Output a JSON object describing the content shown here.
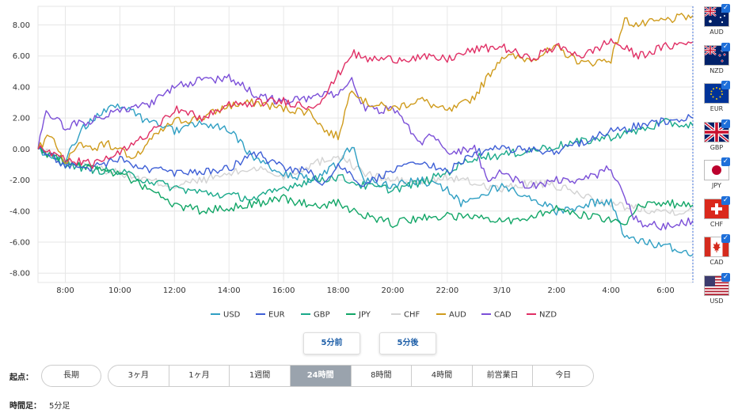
{
  "chart_data": {
    "type": "line",
    "title": "",
    "ylim": [
      -8,
      9
    ],
    "y_ticks": [
      "8.00",
      "6.00",
      "4.00",
      "2.00",
      "0.00",
      "-2.00",
      "-4.00",
      "-6.00",
      "-8.00"
    ],
    "y_tick_values": [
      8,
      6,
      4,
      2,
      0,
      -2,
      -4,
      -6,
      -8
    ],
    "x_ticks": [
      "8:00",
      "10:00",
      "12:00",
      "14:00",
      "16:00",
      "18:00",
      "20:00",
      "22:00",
      "3/10",
      "2:00",
      "4:00",
      "6:00"
    ],
    "x_tick_hours": [
      8,
      10,
      12,
      14,
      16,
      18,
      20,
      22,
      24,
      26,
      28,
      30
    ],
    "x_range_hours": [
      7,
      31
    ],
    "grid": true,
    "legend_position": "bottom",
    "series": [
      {
        "name": "USD",
        "color": "#2f9fc3",
        "x": [
          7,
          7.5,
          8,
          8.5,
          9,
          9.5,
          10,
          11,
          12,
          12.5,
          13,
          14,
          15,
          16,
          17,
          18,
          18.5,
          19,
          20,
          21,
          22,
          22.5,
          23,
          24,
          25,
          26,
          27,
          28,
          28.5,
          29,
          30,
          31
        ],
        "values": [
          0,
          -0.4,
          -0.8,
          1.0,
          2.0,
          2.5,
          2.8,
          1.8,
          1.2,
          1.5,
          1.6,
          1.2,
          -0.8,
          -1.5,
          -2.0,
          -1.0,
          0.2,
          -2.0,
          -2.4,
          -2.0,
          -2.6,
          -3.5,
          -3.0,
          -2.4,
          -3.0,
          -4.0,
          -3.6,
          -3.3,
          -5.6,
          -6.0,
          -6.2,
          -6.8
        ]
      },
      {
        "name": "EUR",
        "color": "#3e5fd6",
        "x": [
          7,
          8,
          9,
          10,
          11,
          12,
          13,
          14,
          15,
          16,
          17,
          17.5,
          18,
          19,
          20,
          21,
          22,
          23,
          24,
          25,
          26,
          27,
          28,
          29,
          30,
          31
        ],
        "values": [
          0,
          -1.0,
          -1.2,
          -0.7,
          -1.3,
          -1.5,
          -1.4,
          -1.2,
          -0.3,
          -1.2,
          -1.5,
          -2.4,
          -1.2,
          -2.3,
          -1.3,
          -0.8,
          -1.5,
          -0.2,
          0.0,
          0.0,
          -0.2,
          0.5,
          1.2,
          1.5,
          1.8,
          2.0
        ]
      },
      {
        "name": "GBP",
        "color": "#19a98a",
        "x": [
          7,
          8,
          9,
          10,
          11,
          12,
          13,
          14,
          15,
          16,
          17,
          18,
          19,
          20,
          21,
          22,
          23,
          24,
          25,
          26,
          27,
          28,
          29,
          30,
          31
        ],
        "values": [
          0,
          -1.0,
          -1.3,
          -1.5,
          -2.0,
          -2.5,
          -2.8,
          -3.0,
          -3.2,
          -2.5,
          -2.0,
          -1.8,
          -2.4,
          -2.6,
          -2.2,
          -1.5,
          -0.5,
          -0.4,
          -0.1,
          0.2,
          0.5,
          0.8,
          1.2,
          1.7,
          1.5
        ]
      },
      {
        "name": "JPY",
        "color": "#12a667",
        "x": [
          7,
          8,
          9,
          10,
          11,
          12,
          13,
          14,
          15,
          16,
          17,
          18,
          19,
          20,
          21,
          22,
          23,
          24,
          25,
          26,
          27,
          28,
          28.5,
          29,
          30,
          31
        ],
        "values": [
          0,
          -0.8,
          -1.2,
          -1.6,
          -2.5,
          -3.6,
          -4.0,
          -3.8,
          -3.5,
          -3.2,
          -3.6,
          -3.5,
          -4.3,
          -4.8,
          -4.5,
          -4.3,
          -4.5,
          -4.6,
          -4.5,
          -3.7,
          -4.3,
          -4.5,
          -5.1,
          -3.7,
          -3.5,
          -3.6
        ]
      },
      {
        "name": "CHF",
        "color": "#d3d3d3",
        "x": [
          7,
          8,
          9,
          10,
          11,
          12,
          13,
          14,
          15,
          16,
          17,
          18,
          19,
          20,
          21,
          22,
          23,
          24,
          25,
          26,
          27,
          28,
          29,
          30,
          31
        ],
        "values": [
          0,
          -0.8,
          -1.2,
          -1.5,
          -2.0,
          -2.4,
          -2.0,
          -1.6,
          -1.2,
          -1.8,
          -1.0,
          -0.4,
          -1.6,
          -2.0,
          -2.2,
          -1.8,
          -2.2,
          -2.6,
          -2.2,
          -2.4,
          -3.0,
          -3.6,
          -3.8,
          -4.0,
          -4.0
        ]
      },
      {
        "name": "AUD",
        "color": "#cf9b1c",
        "x": [
          7,
          7.5,
          8,
          8.5,
          9,
          9.5,
          10,
          10.5,
          11,
          12,
          13,
          14,
          15,
          16,
          17,
          17.5,
          18,
          18.5,
          19,
          20,
          21,
          22,
          22.5,
          23,
          24,
          25,
          26,
          27,
          28,
          28.5,
          29,
          30,
          31
        ],
        "values": [
          0,
          1.0,
          -0.8,
          0.2,
          0.0,
          0.4,
          0.0,
          -0.8,
          0.4,
          1.8,
          2.0,
          2.8,
          3.0,
          2.6,
          2.4,
          1.2,
          0.8,
          4.0,
          3.0,
          2.6,
          3.2,
          2.4,
          2.8,
          3.4,
          6.0,
          5.8,
          6.5,
          5.5,
          5.8,
          8.3,
          8.0,
          8.3,
          8.6
        ]
      },
      {
        "name": "CAD",
        "color": "#7b4fd8",
        "x": [
          7,
          7.3,
          7.7,
          8,
          9,
          10,
          11,
          12,
          13,
          14,
          15,
          16,
          17,
          18,
          18.5,
          19,
          20,
          20.5,
          21,
          21.5,
          22,
          23,
          23.5,
          24,
          25,
          26,
          27,
          28,
          28.5,
          29,
          30,
          31
        ],
        "values": [
          0,
          2.6,
          1.8,
          1.4,
          1.9,
          2.6,
          2.8,
          4.0,
          4.4,
          4.6,
          3.5,
          3.0,
          3.3,
          3.6,
          4.4,
          2.5,
          2.6,
          1.5,
          0.4,
          1.0,
          -0.2,
          0.0,
          -2.0,
          -1.5,
          -2.4,
          -2.0,
          -2.0,
          -1.2,
          -3.3,
          -4.8,
          -5.0,
          -4.6
        ]
      },
      {
        "name": "NZD",
        "color": "#e02f65",
        "x": [
          7,
          8,
          9,
          10,
          11,
          12,
          13,
          14,
          15,
          16,
          17,
          17.5,
          18,
          18.5,
          19,
          20,
          21,
          22,
          23,
          24,
          25,
          26,
          27,
          28,
          29,
          30,
          31
        ],
        "values": [
          0,
          -0.6,
          -1.0,
          -0.3,
          1.0,
          2.6,
          2.0,
          2.8,
          3.0,
          3.1,
          2.7,
          3.4,
          4.8,
          6.2,
          5.8,
          5.8,
          5.9,
          5.8,
          6.4,
          6.6,
          5.8,
          6.6,
          6.0,
          7.0,
          6.0,
          6.6,
          6.9
        ]
      }
    ]
  },
  "currency_panel": [
    {
      "code": "AUD",
      "flag": "australia-flag",
      "checked": true
    },
    {
      "code": "NZD",
      "flag": "new-zealand-flag",
      "checked": true
    },
    {
      "code": "EUR",
      "flag": "eu-flag",
      "checked": true
    },
    {
      "code": "GBP",
      "flag": "uk-flag",
      "checked": true
    },
    {
      "code": "JPY",
      "flag": "japan-flag",
      "checked": true
    },
    {
      "code": "CHF",
      "flag": "switzerland-flag",
      "checked": true
    },
    {
      "code": "CAD",
      "flag": "canada-flag",
      "checked": true
    },
    {
      "code": "USD",
      "flag": "us-flag",
      "checked": true
    }
  ],
  "step_buttons": {
    "prev": "5分前",
    "next": "5分後"
  },
  "origin": {
    "label": "起点：",
    "long_term": "長期",
    "options": [
      "3ヶ月",
      "1ヶ月",
      "1週間",
      "24時間",
      "8時間",
      "4時間",
      "前営業日",
      "今日"
    ],
    "selected": "24時間"
  },
  "timeframe": {
    "label": "時間足：",
    "value": "5分足"
  },
  "colors": {
    "accent": "#1e5fa8",
    "selected_bg": "#9aa3ad",
    "check": "#1e6fd9"
  }
}
